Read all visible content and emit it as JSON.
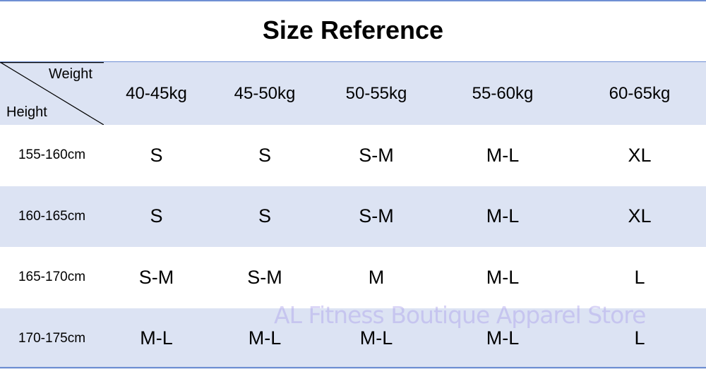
{
  "title": "Size Reference",
  "corner": {
    "top_label": "Weight",
    "bottom_label": "Height"
  },
  "columns": [
    "40-45kg",
    "45-50kg",
    "50-55kg",
    "55-60kg",
    "60-65kg"
  ],
  "rows": [
    {
      "height": "155-160cm",
      "sizes": [
        "S",
        "S",
        "S-M",
        "M-L",
        "XL"
      ]
    },
    {
      "height": "160-165cm",
      "sizes": [
        "S",
        "S",
        "S-M",
        "M-L",
        "XL"
      ]
    },
    {
      "height": "165-170cm",
      "sizes": [
        "S-M",
        "S-M",
        "M",
        "M-L",
        "L"
      ]
    },
    {
      "height": "170-175cm",
      "sizes": [
        "M-L",
        "M-L",
        "M-L",
        "M-L",
        "L"
      ]
    }
  ],
  "watermark": "AL Fitness Boutique Apparel Store",
  "colors": {
    "band": "#dce3f3",
    "rule": "#6f8fd3"
  }
}
